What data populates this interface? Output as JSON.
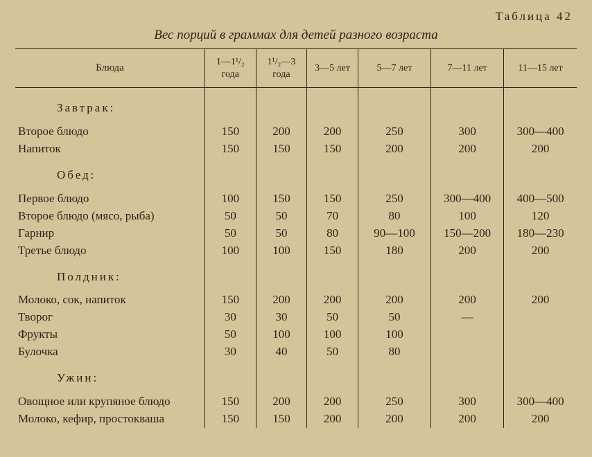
{
  "table_label": "Таблица 42",
  "caption": "Вес порций в граммах для детей разного возраста",
  "columns": [
    "Блюда",
    "1—1¹/₂ года",
    "1¹/₂—3 года",
    "3—5 лет",
    "5—7 лет",
    "7—11 лет",
    "11—15 лет"
  ],
  "sections": [
    {
      "title": "Завтрак:",
      "rows": [
        {
          "label": "Второе блюдо",
          "cells": [
            "150",
            "200",
            "200",
            "250",
            "300",
            "300—400"
          ]
        },
        {
          "label": "Напиток",
          "cells": [
            "150",
            "150",
            "150",
            "200",
            "200",
            "200"
          ]
        }
      ]
    },
    {
      "title": "Обед:",
      "rows": [
        {
          "label": "Первое блюдо",
          "cells": [
            "100",
            "150",
            "150",
            "250",
            "300—400",
            "400—500"
          ]
        },
        {
          "label": "Второе блюдо (мясо, рыба)",
          "cells": [
            "50",
            "50",
            "70",
            "80",
            "100",
            "120"
          ]
        },
        {
          "label": "Гарнир",
          "cells": [
            "50",
            "50",
            "80",
            "90—100",
            "150—200",
            "180—230"
          ]
        },
        {
          "label": "Третье блюдо",
          "cells": [
            "100",
            "100",
            "150",
            "180",
            "200",
            "200"
          ]
        }
      ]
    },
    {
      "title": "Полдник:",
      "rows": [
        {
          "label": "Молоко, сок, напиток",
          "cells": [
            "150",
            "200",
            "200",
            "200",
            "200",
            "200"
          ]
        },
        {
          "label": "Творог",
          "cells": [
            "30",
            "30",
            "50",
            "50",
            "—",
            ""
          ]
        },
        {
          "label": "Фрукты",
          "cells": [
            "50",
            "100",
            "100",
            "100",
            "",
            ""
          ]
        },
        {
          "label": "Булочка",
          "cells": [
            "30",
            "40",
            "50",
            "80",
            "",
            ""
          ]
        }
      ]
    },
    {
      "title": "Ужин:",
      "rows": [
        {
          "label": "Овощное или крупяное блюдо",
          "cells": [
            "150",
            "200",
            "200",
            "250",
            "300",
            "300—400"
          ]
        },
        {
          "label": "Молоко, кефир, простокваша",
          "cells": [
            "150",
            "150",
            "200",
            "200",
            "200",
            "200"
          ]
        }
      ]
    }
  ]
}
